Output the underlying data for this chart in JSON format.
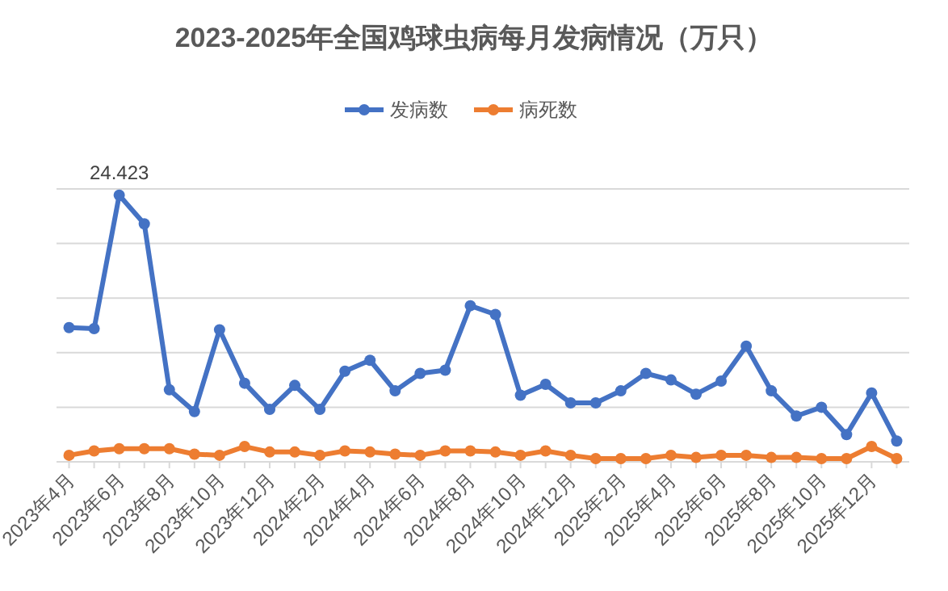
{
  "chart_data": {
    "type": "line",
    "title": "2023-2025年全国鸡球虫病每月发病情况（万只）",
    "categories": [
      "2023年4月",
      null,
      "2023年6月",
      null,
      "2023年8月",
      null,
      "2023年10月",
      null,
      "2023年12月",
      null,
      "2024年2月",
      null,
      "2024年4月",
      null,
      "2024年6月",
      null,
      "2024年8月",
      null,
      "2024年10月",
      null,
      "2024年12月",
      null,
      "2025年2月",
      null,
      "2025年4月",
      null,
      "2025年6月",
      null,
      "2025年8月",
      null,
      "2025年10月",
      null,
      "2025年12月",
      null
    ],
    "series": [
      {
        "name": "发病数",
        "color": "#4472c4",
        "values": [
          12.3,
          12.2,
          24.423,
          21.8,
          6.6,
          4.6,
          12.1,
          7.2,
          4.8,
          7.0,
          4.8,
          8.3,
          9.3,
          6.5,
          8.1,
          8.4,
          14.3,
          13.5,
          6.1,
          7.1,
          5.4,
          5.4,
          6.5,
          8.1,
          7.5,
          6.2,
          7.4,
          10.6,
          6.5,
          4.2,
          5.0,
          2.5,
          6.3,
          1.9
        ],
        "value_labels": [
          null,
          null,
          "24.423",
          null,
          null,
          null,
          null,
          null,
          null,
          null,
          null,
          null,
          null,
          null,
          null,
          null,
          null,
          null,
          null,
          null,
          null,
          null,
          null,
          null,
          null,
          null,
          null,
          null,
          null,
          null,
          null,
          null,
          null,
          null
        ]
      },
      {
        "name": "病死数",
        "color": "#ed7d31",
        "values": [
          0.6,
          1.0,
          1.2,
          1.2,
          1.2,
          0.7,
          0.6,
          1.4,
          0.9,
          0.9,
          0.6,
          1.0,
          0.9,
          0.7,
          0.6,
          1.0,
          1.0,
          0.9,
          0.6,
          1.0,
          0.6,
          0.3,
          0.3,
          0.3,
          0.6,
          0.4,
          0.6,
          0.6,
          0.4,
          0.4,
          0.3,
          0.3,
          1.4,
          0.3
        ]
      }
    ],
    "ylim": [
      0,
      25
    ],
    "yticks": [
      {
        "value": 0,
        "label": null
      },
      {
        "value": 5,
        "label": null
      },
      {
        "value": 10,
        "label": null
      },
      {
        "value": 15,
        "label": null
      },
      {
        "value": 20,
        "label": null
      },
      {
        "value": 25,
        "label": null
      }
    ],
    "tick_labels": "x",
    "grid": "y",
    "legend": "top",
    "marker": "circle",
    "line_style": "solid"
  }
}
